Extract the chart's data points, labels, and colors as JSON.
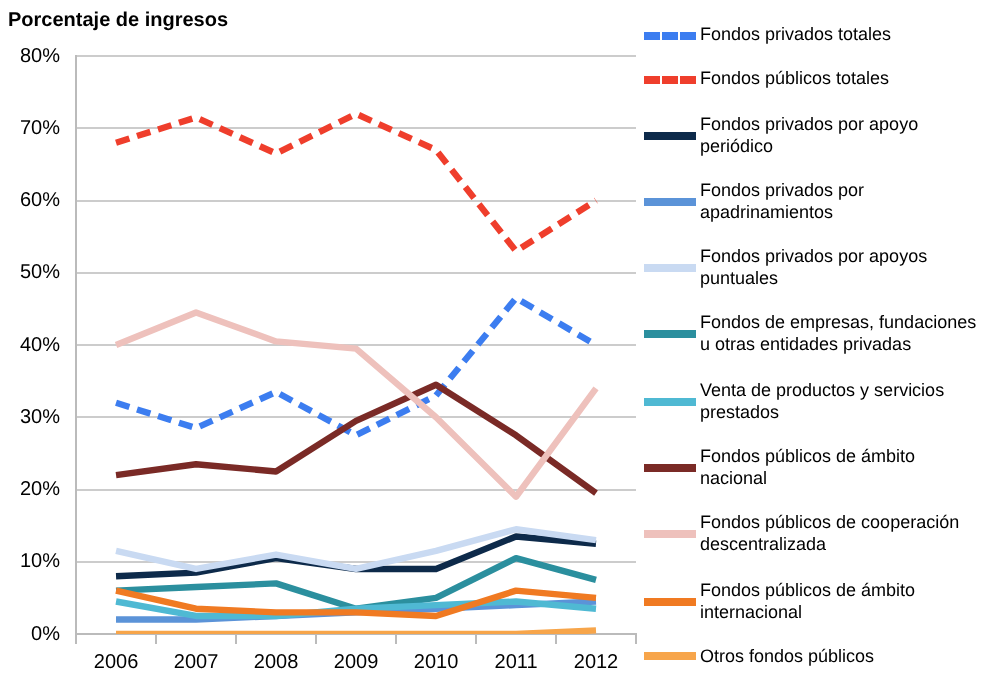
{
  "chart_data": {
    "type": "line",
    "ylabel": "Porcentaje de ingresos",
    "categories": [
      "2006",
      "2007",
      "2008",
      "2009",
      "2010",
      "2011",
      "2012"
    ],
    "ylim": [
      0,
      80
    ],
    "yticks": [
      {
        "value": 0,
        "label": "0%"
      },
      {
        "value": 10,
        "label": "10%"
      },
      {
        "value": 20,
        "label": "20%"
      },
      {
        "value": 30,
        "label": "30%"
      },
      {
        "value": 40,
        "label": "40%"
      },
      {
        "value": 50,
        "label": "50%"
      },
      {
        "value": 60,
        "label": "60%"
      },
      {
        "value": 70,
        "label": "70%"
      },
      {
        "value": 80,
        "label": "80%"
      }
    ],
    "grid": "y",
    "legend": "right",
    "marker": "none",
    "series": [
      {
        "name": "Fondos privados totales",
        "color": "#3c7df0",
        "line_style": "dashed",
        "values": [
          32,
          28.5,
          33.5,
          27.5,
          33,
          46.5,
          40
        ]
      },
      {
        "name": "Fondos públicos totales",
        "color": "#ef3e2c",
        "line_style": "dashed",
        "values": [
          68,
          71.5,
          66.5,
          72,
          67,
          53,
          60
        ]
      },
      {
        "name": "Fondos privados por apoyo periódico",
        "color": "#0d2a4a",
        "values": [
          8,
          8.5,
          10.5,
          9,
          9,
          13.5,
          12.5
        ]
      },
      {
        "name": "Fondos privados por apadrinamientos",
        "color": "#5b93d8",
        "values": [
          2,
          2,
          2.5,
          3,
          3.5,
          4,
          4.5
        ]
      },
      {
        "name": "Fondos privados por apoyos puntuales",
        "color": "#c9daf2",
        "values": [
          11.5,
          9,
          11,
          9,
          11.5,
          14.5,
          13
        ]
      },
      {
        "name": "Fondos de empresas, fundaciones u otras entidades privadas",
        "color": "#2b8f9e",
        "values": [
          6,
          6.5,
          7,
          3.5,
          5,
          10.5,
          7.5
        ]
      },
      {
        "name": "Venta de productos y servicios prestados",
        "color": "#4fb9d3",
        "values": [
          4.5,
          2.5,
          2.5,
          3.5,
          4,
          4.5,
          3.5
        ]
      },
      {
        "name": "Fondos públicos de ámbito nacional",
        "color": "#7a2a26",
        "values": [
          22,
          23.5,
          22.5,
          29.5,
          34.5,
          27.5,
          19.5
        ]
      },
      {
        "name": "Fondos públicos de cooperación descentralizada",
        "color": "#eec1bc",
        "values": [
          40,
          44.5,
          40.5,
          39.5,
          30,
          19,
          34
        ]
      },
      {
        "name": "Fondos públicos de ámbito internacional",
        "color": "#f07a22",
        "values": [
          6,
          3.5,
          3,
          3,
          2.5,
          6,
          5
        ]
      },
      {
        "name": "Otros fondos públicos",
        "color": "#f7a54a",
        "values": [
          0,
          0,
          0,
          0,
          0,
          0,
          0.5
        ]
      }
    ]
  }
}
